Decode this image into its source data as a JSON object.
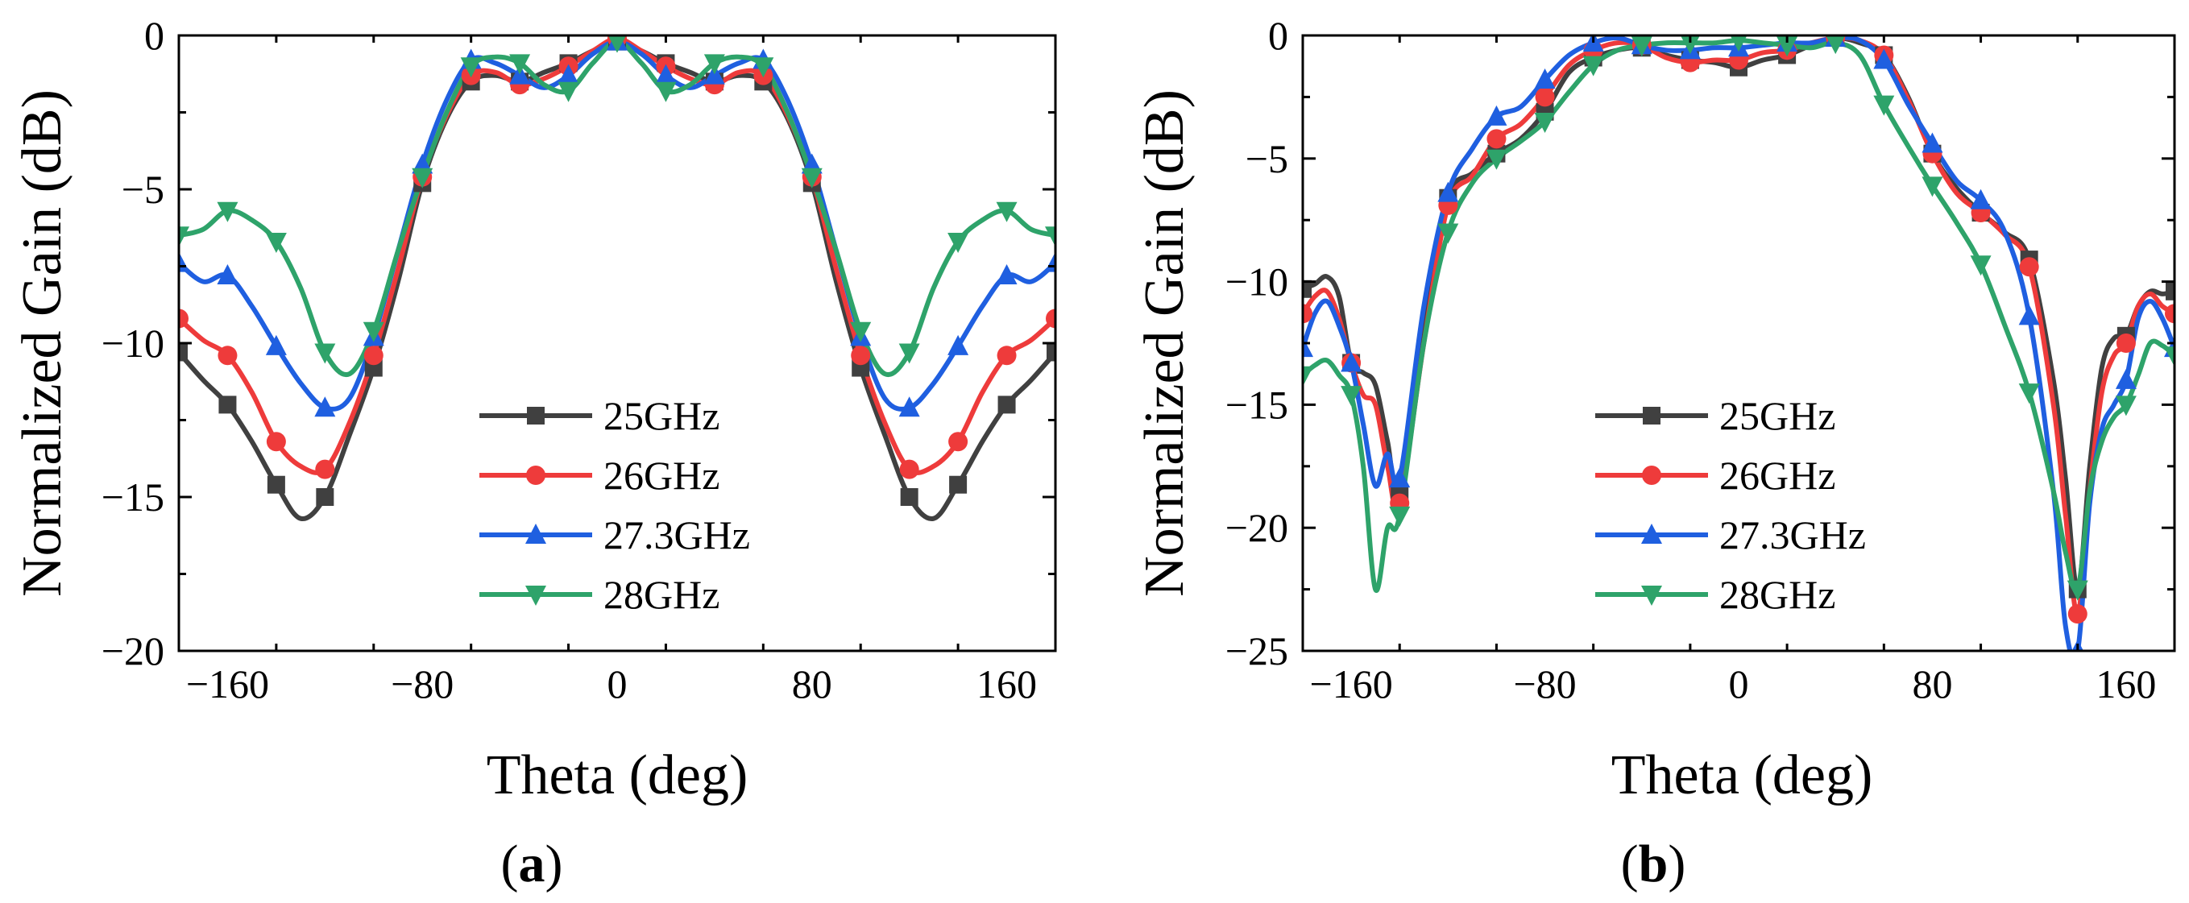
{
  "chart_data": [
    {
      "type": "line",
      "panel_label": "(a)",
      "xlabel": "Theta (deg)",
      "ylabel": "Normalized Gain (dB)",
      "xlim": [
        -180,
        180
      ],
      "ylim": [
        -20,
        0
      ],
      "xticks": [
        -160,
        -80,
        0,
        80,
        160
      ],
      "yticks": [
        0,
        -5,
        -10,
        -15,
        -20
      ],
      "legend_position": "bottom-center",
      "series": [
        {
          "name": "25GHz",
          "color": "#404040",
          "marker": "square",
          "x": [
            -180,
            -170,
            -160,
            -150,
            -140,
            -130,
            -120,
            -110,
            -100,
            -90,
            -80,
            -70,
            -60,
            -50,
            -40,
            -30,
            -20,
            -10,
            0,
            10,
            20,
            30,
            40,
            50,
            60,
            70,
            80,
            90,
            100,
            110,
            120,
            130,
            140,
            150,
            160,
            170,
            180
          ],
          "y": [
            -10.3,
            -11.2,
            -12.0,
            -13.2,
            -14.6,
            -15.7,
            -15.0,
            -13.0,
            -10.8,
            -8.0,
            -4.8,
            -2.7,
            -1.5,
            -1.3,
            -1.5,
            -1.2,
            -0.9,
            -0.5,
            -0.2,
            -0.5,
            -0.9,
            -1.2,
            -1.5,
            -1.3,
            -1.5,
            -2.7,
            -4.8,
            -8.0,
            -10.8,
            -13.0,
            -15.0,
            -15.7,
            -14.6,
            -13.2,
            -12.0,
            -11.2,
            -10.3
          ],
          "marker_x": [
            -180,
            -160,
            -140,
            -120,
            -100,
            -80,
            -60,
            -40,
            -20,
            0,
            20,
            40,
            60,
            80,
            100,
            120,
            140,
            160,
            180
          ]
        },
        {
          "name": "26GHz",
          "color": "#ee3b3b",
          "marker": "circle",
          "x": [
            -180,
            -170,
            -160,
            -150,
            -140,
            -130,
            -120,
            -110,
            -100,
            -90,
            -80,
            -70,
            -60,
            -50,
            -40,
            -30,
            -20,
            -10,
            0,
            10,
            20,
            30,
            40,
            50,
            60,
            70,
            80,
            90,
            100,
            110,
            120,
            130,
            140,
            150,
            160,
            170,
            180
          ],
          "y": [
            -9.2,
            -9.9,
            -10.4,
            -11.6,
            -13.2,
            -14.0,
            -14.1,
            -12.6,
            -10.4,
            -7.6,
            -4.6,
            -2.6,
            -1.3,
            -1.2,
            -1.6,
            -1.4,
            -1.0,
            -0.5,
            -0.1,
            -0.5,
            -1.0,
            -1.4,
            -1.6,
            -1.2,
            -1.3,
            -2.6,
            -4.6,
            -7.6,
            -10.4,
            -12.6,
            -14.1,
            -14.0,
            -13.2,
            -11.6,
            -10.4,
            -9.9,
            -9.2
          ],
          "marker_x": [
            -180,
            -160,
            -140,
            -120,
            -100,
            -80,
            -60,
            -40,
            -20,
            0,
            20,
            40,
            60,
            80,
            100,
            120,
            140,
            160,
            180
          ]
        },
        {
          "name": "27.3GHz",
          "color": "#1f5fe0",
          "marker": "triangle-up",
          "x": [
            -180,
            -170,
            -160,
            -150,
            -140,
            -130,
            -120,
            -110,
            -100,
            -90,
            -80,
            -70,
            -60,
            -50,
            -40,
            -30,
            -20,
            -10,
            0,
            10,
            20,
            30,
            40,
            50,
            60,
            70,
            80,
            90,
            100,
            110,
            120,
            130,
            140,
            150,
            160,
            170,
            180
          ],
          "y": [
            -7.4,
            -8.0,
            -7.8,
            -8.8,
            -10.1,
            -11.3,
            -12.1,
            -11.8,
            -9.8,
            -7.0,
            -4.2,
            -2.1,
            -0.8,
            -0.9,
            -1.3,
            -1.7,
            -1.3,
            -0.6,
            -0.2,
            -0.6,
            -1.3,
            -1.7,
            -1.3,
            -0.9,
            -0.8,
            -2.1,
            -4.2,
            -7.0,
            -9.8,
            -11.8,
            -12.1,
            -11.3,
            -10.1,
            -8.8,
            -7.8,
            -8.0,
            -7.4
          ],
          "marker_x": [
            -180,
            -160,
            -140,
            -120,
            -100,
            -80,
            -60,
            -40,
            -20,
            0,
            20,
            40,
            60,
            80,
            100,
            120,
            140,
            160,
            180
          ]
        },
        {
          "name": "28GHz",
          "color": "#2ea36a",
          "marker": "triangle-down",
          "x": [
            -180,
            -170,
            -160,
            -150,
            -140,
            -130,
            -120,
            -110,
            -100,
            -90,
            -80,
            -70,
            -60,
            -50,
            -40,
            -30,
            -20,
            -10,
            0,
            10,
            20,
            30,
            40,
            50,
            60,
            70,
            80,
            90,
            100,
            110,
            120,
            130,
            140,
            150,
            160,
            170,
            180
          ],
          "y": [
            -6.5,
            -6.3,
            -5.7,
            -6.0,
            -6.7,
            -8.2,
            -10.3,
            -11.0,
            -9.6,
            -7.0,
            -4.6,
            -2.5,
            -1.0,
            -0.7,
            -0.9,
            -1.6,
            -1.8,
            -0.9,
            -0.2,
            -0.9,
            -1.8,
            -1.6,
            -0.9,
            -0.7,
            -1.0,
            -2.5,
            -4.6,
            -7.0,
            -9.6,
            -11.0,
            -10.3,
            -8.2,
            -6.7,
            -6.0,
            -5.7,
            -6.3,
            -6.5
          ],
          "marker_x": [
            -180,
            -160,
            -140,
            -120,
            -100,
            -80,
            -60,
            -40,
            -20,
            0,
            20,
            40,
            60,
            80,
            100,
            120,
            140,
            160,
            180
          ]
        }
      ]
    },
    {
      "type": "line",
      "panel_label": "(b)",
      "xlabel": "Theta (deg)",
      "ylabel": "Normalized Gain (dB)",
      "xlim": [
        -180,
        180
      ],
      "ylim": [
        -25,
        0
      ],
      "xticks": [
        -160,
        -80,
        0,
        80,
        160
      ],
      "yticks": [
        0,
        -5,
        -10,
        -15,
        -20,
        -25
      ],
      "legend_position": "bottom-center",
      "series": [
        {
          "name": "25GHz",
          "color": "#404040",
          "marker": "square",
          "x": [
            -180,
            -175,
            -170,
            -165,
            -160,
            -155,
            -150,
            -145,
            -140,
            -130,
            -120,
            -110,
            -100,
            -90,
            -80,
            -70,
            -60,
            -50,
            -40,
            -30,
            -20,
            -10,
            0,
            10,
            20,
            30,
            40,
            50,
            60,
            70,
            80,
            90,
            100,
            110,
            120,
            130,
            135,
            140,
            145,
            150,
            155,
            160,
            165,
            170,
            175,
            180
          ],
          "y": [
            -10.3,
            -10.1,
            -9.8,
            -10.6,
            -13.3,
            -13.7,
            -14.2,
            -16.5,
            -18.6,
            -12.0,
            -6.6,
            -5.6,
            -4.8,
            -4.2,
            -3.1,
            -1.5,
            -0.9,
            -0.6,
            -0.5,
            -0.8,
            -1.0,
            -1.1,
            -1.3,
            -1.0,
            -0.8,
            -0.4,
            -0.1,
            -0.3,
            -0.8,
            -2.5,
            -4.8,
            -6.2,
            -7.2,
            -8.0,
            -9.1,
            -14.0,
            -18.0,
            -22.5,
            -17.5,
            -13.5,
            -12.3,
            -12.2,
            -11.0,
            -10.4,
            -10.5,
            -10.4
          ],
          "marker_x": [
            -180,
            -160,
            -140,
            -120,
            -100,
            -80,
            -60,
            -40,
            -20,
            0,
            20,
            40,
            60,
            80,
            100,
            120,
            140,
            160,
            180
          ]
        },
        {
          "name": "26GHz",
          "color": "#ee3b3b",
          "marker": "circle",
          "x": [
            -180,
            -175,
            -170,
            -165,
            -160,
            -155,
            -150,
            -145,
            -140,
            -130,
            -120,
            -110,
            -100,
            -90,
            -80,
            -70,
            -60,
            -50,
            -40,
            -30,
            -20,
            -10,
            0,
            10,
            20,
            30,
            40,
            50,
            60,
            70,
            80,
            90,
            100,
            110,
            120,
            130,
            135,
            140,
            145,
            150,
            155,
            160,
            165,
            170,
            175,
            180
          ],
          "y": [
            -11.3,
            -10.6,
            -10.4,
            -11.5,
            -13.3,
            -14.6,
            -15.0,
            -17.5,
            -19.0,
            -12.5,
            -6.9,
            -5.7,
            -4.2,
            -3.6,
            -2.5,
            -1.2,
            -0.6,
            -0.3,
            -0.4,
            -0.9,
            -1.1,
            -1.0,
            -1.0,
            -0.7,
            -0.6,
            -0.3,
            -0.1,
            -0.2,
            -0.8,
            -2.6,
            -4.8,
            -6.4,
            -7.2,
            -8.1,
            -9.4,
            -15.0,
            -19.5,
            -23.5,
            -18.5,
            -14.5,
            -13.0,
            -12.5,
            -11.0,
            -10.5,
            -11.0,
            -11.3
          ],
          "marker_x": [
            -180,
            -160,
            -140,
            -120,
            -100,
            -80,
            -60,
            -40,
            -20,
            0,
            20,
            40,
            60,
            80,
            100,
            120,
            140,
            160,
            180
          ]
        },
        {
          "name": "27.3GHz",
          "color": "#1f5fe0",
          "marker": "triangle-up",
          "x": [
            -180,
            -175,
            -170,
            -165,
            -160,
            -155,
            -150,
            -145,
            -140,
            -130,
            -120,
            -110,
            -100,
            -90,
            -80,
            -70,
            -60,
            -50,
            -40,
            -30,
            -20,
            -10,
            0,
            10,
            20,
            30,
            40,
            50,
            60,
            70,
            80,
            90,
            100,
            110,
            120,
            130,
            135,
            140,
            145,
            150,
            155,
            160,
            165,
            170,
            175,
            180
          ],
          "y": [
            -12.7,
            -11.3,
            -10.8,
            -11.8,
            -13.3,
            -15.8,
            -18.3,
            -17.0,
            -18.0,
            -11.0,
            -6.4,
            -4.6,
            -3.3,
            -2.9,
            -1.8,
            -0.8,
            -0.3,
            -0.1,
            -0.4,
            -0.6,
            -0.6,
            -0.5,
            -0.5,
            -0.4,
            -0.3,
            -0.3,
            -0.1,
            -0.2,
            -1.0,
            -2.8,
            -4.4,
            -5.9,
            -6.7,
            -8.0,
            -11.4,
            -18.5,
            -24.0,
            -25.0,
            -19.0,
            -16.0,
            -15.0,
            -14.0,
            -11.5,
            -10.8,
            -11.5,
            -12.7
          ],
          "marker_x": [
            -180,
            -160,
            -140,
            -120,
            -100,
            -80,
            -60,
            -40,
            -20,
            0,
            20,
            40,
            60,
            80,
            100,
            120,
            140,
            160,
            180
          ]
        },
        {
          "name": "28GHz",
          "color": "#2ea36a",
          "marker": "triangle-down",
          "x": [
            -180,
            -175,
            -170,
            -165,
            -160,
            -155,
            -150,
            -145,
            -140,
            -130,
            -120,
            -110,
            -100,
            -90,
            -80,
            -70,
            -60,
            -50,
            -40,
            -30,
            -20,
            -10,
            0,
            10,
            20,
            30,
            40,
            50,
            60,
            70,
            80,
            90,
            100,
            110,
            120,
            130,
            135,
            140,
            145,
            150,
            155,
            160,
            165,
            170,
            175,
            180
          ],
          "y": [
            -13.8,
            -13.4,
            -13.2,
            -13.8,
            -14.6,
            -17.5,
            -22.5,
            -20.0,
            -19.5,
            -12.5,
            -8.0,
            -6.0,
            -5.0,
            -4.3,
            -3.5,
            -2.3,
            -1.2,
            -0.6,
            -0.4,
            -0.3,
            -0.3,
            -0.3,
            -0.2,
            -0.3,
            -0.4,
            -0.5,
            -0.3,
            -0.8,
            -2.8,
            -4.5,
            -6.1,
            -7.6,
            -9.3,
            -11.8,
            -14.5,
            -18.5,
            -21.0,
            -22.5,
            -18.5,
            -16.5,
            -15.5,
            -15.0,
            -13.8,
            -12.5,
            -12.6,
            -13.0
          ],
          "marker_x": [
            -180,
            -160,
            -140,
            -120,
            -100,
            -80,
            -60,
            -40,
            -20,
            0,
            20,
            40,
            60,
            80,
            100,
            120,
            140,
            160,
            180
          ]
        }
      ]
    }
  ]
}
